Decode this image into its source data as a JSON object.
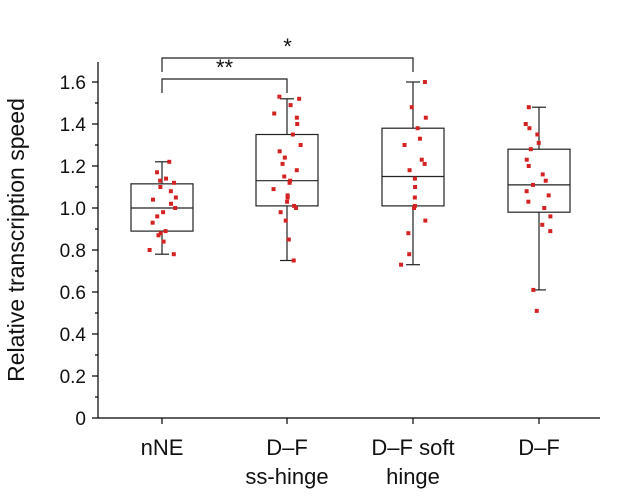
{
  "chart_data": {
    "type": "box",
    "ylabel": "Relative transcription speed",
    "xlabel": "",
    "ylim": [
      0,
      1.7
    ],
    "yticks": [
      0,
      0.2,
      0.4,
      0.6,
      0.8,
      1.0,
      1.2,
      1.4,
      1.6
    ],
    "ytick_labels": [
      "0",
      "0.2",
      "0.4",
      "0.6",
      "0.8",
      "1.0",
      "1.2",
      "1.4",
      "1.6"
    ],
    "point_color": "#d42222",
    "categories": [
      {
        "label_lines": [
          "nNE"
        ],
        "whisker_low": 0.78,
        "q1": 0.89,
        "median": 1.0,
        "q3": 1.115,
        "whisker_high": 1.22,
        "points": [
          0.78,
          0.8,
          0.84,
          0.87,
          0.88,
          0.89,
          0.93,
          0.96,
          0.98,
          1.0,
          1.02,
          1.04,
          1.05,
          1.08,
          1.1,
          1.12,
          1.13,
          1.14,
          1.17,
          1.22
        ]
      },
      {
        "label_lines": [
          "D–F",
          "ss-hinge"
        ],
        "whisker_low": 0.75,
        "q1": 1.01,
        "median": 1.13,
        "q3": 1.35,
        "whisker_high": 1.52,
        "points": [
          0.75,
          0.85,
          0.94,
          0.98,
          1.0,
          1.01,
          1.03,
          1.05,
          1.06,
          1.09,
          1.12,
          1.13,
          1.15,
          1.18,
          1.21,
          1.24,
          1.27,
          1.3,
          1.35,
          1.4,
          1.43,
          1.45,
          1.49,
          1.52,
          1.53
        ]
      },
      {
        "label_lines": [
          "D–F soft",
          "hinge"
        ],
        "whisker_low": 0.73,
        "q1": 1.01,
        "median": 1.15,
        "q3": 1.38,
        "whisker_high": 1.6,
        "points": [
          0.73,
          0.78,
          0.88,
          0.94,
          1.0,
          1.01,
          1.05,
          1.1,
          1.14,
          1.18,
          1.21,
          1.23,
          1.3,
          1.33,
          1.38,
          1.43,
          1.48,
          1.6
        ]
      },
      {
        "label_lines": [
          "D–F"
        ],
        "whisker_low": 0.61,
        "q1": 0.98,
        "median": 1.11,
        "q3": 1.28,
        "whisker_high": 1.48,
        "points": [
          0.51,
          0.61,
          0.89,
          0.92,
          0.96,
          1.0,
          1.03,
          1.06,
          1.08,
          1.11,
          1.13,
          1.16,
          1.2,
          1.23,
          1.28,
          1.31,
          1.35,
          1.38,
          1.4,
          1.48
        ]
      }
    ],
    "significance": [
      {
        "from": 0,
        "to": 2,
        "label": "*"
      },
      {
        "from": 0,
        "to": 1,
        "label": "**"
      }
    ]
  }
}
